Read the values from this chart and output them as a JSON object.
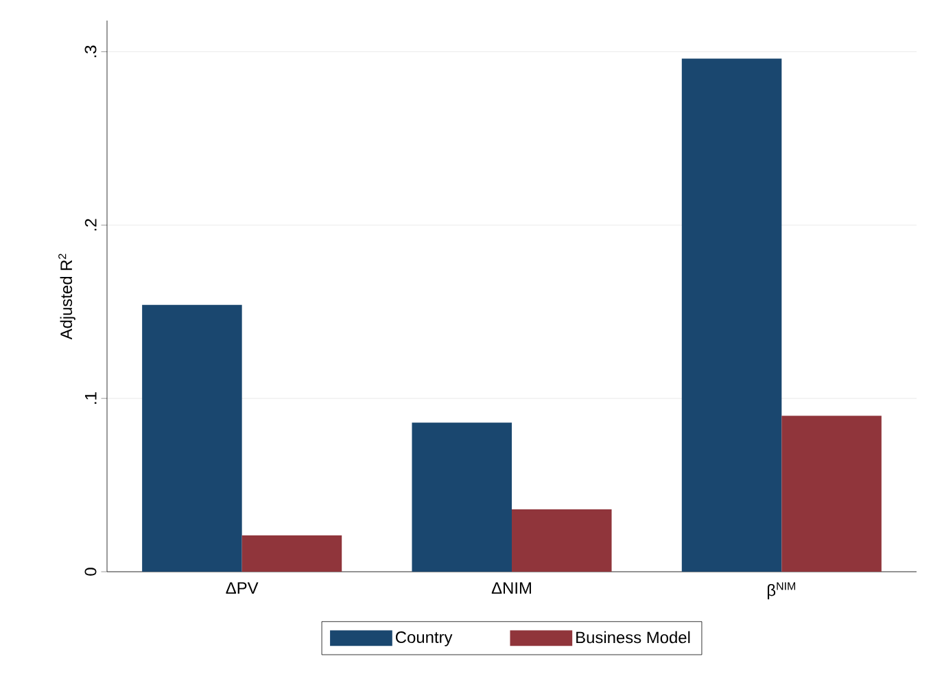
{
  "chart_data": {
    "type": "bar",
    "ylabel": "Adjusted R$^{2}$",
    "categories": [
      "ΔPV",
      "ΔNIM",
      "β$^{NIM}$"
    ],
    "series": [
      {
        "name": "Country",
        "color": "#1a476f",
        "values": [
          0.154,
          0.086,
          0.296
        ]
      },
      {
        "name": "Business Model",
        "color": "#90353b",
        "values": [
          0.021,
          0.036,
          0.09
        ]
      }
    ],
    "ylim": [
      0,
      0.318
    ],
    "yticks": [
      0,
      {
        "value": 0.1,
        "label": ".1"
      },
      {
        "value": 0.2,
        "label": ".2"
      },
      {
        "value": 0.3,
        "label": ".3"
      }
    ],
    "grid": "y",
    "legend": "bottom"
  }
}
